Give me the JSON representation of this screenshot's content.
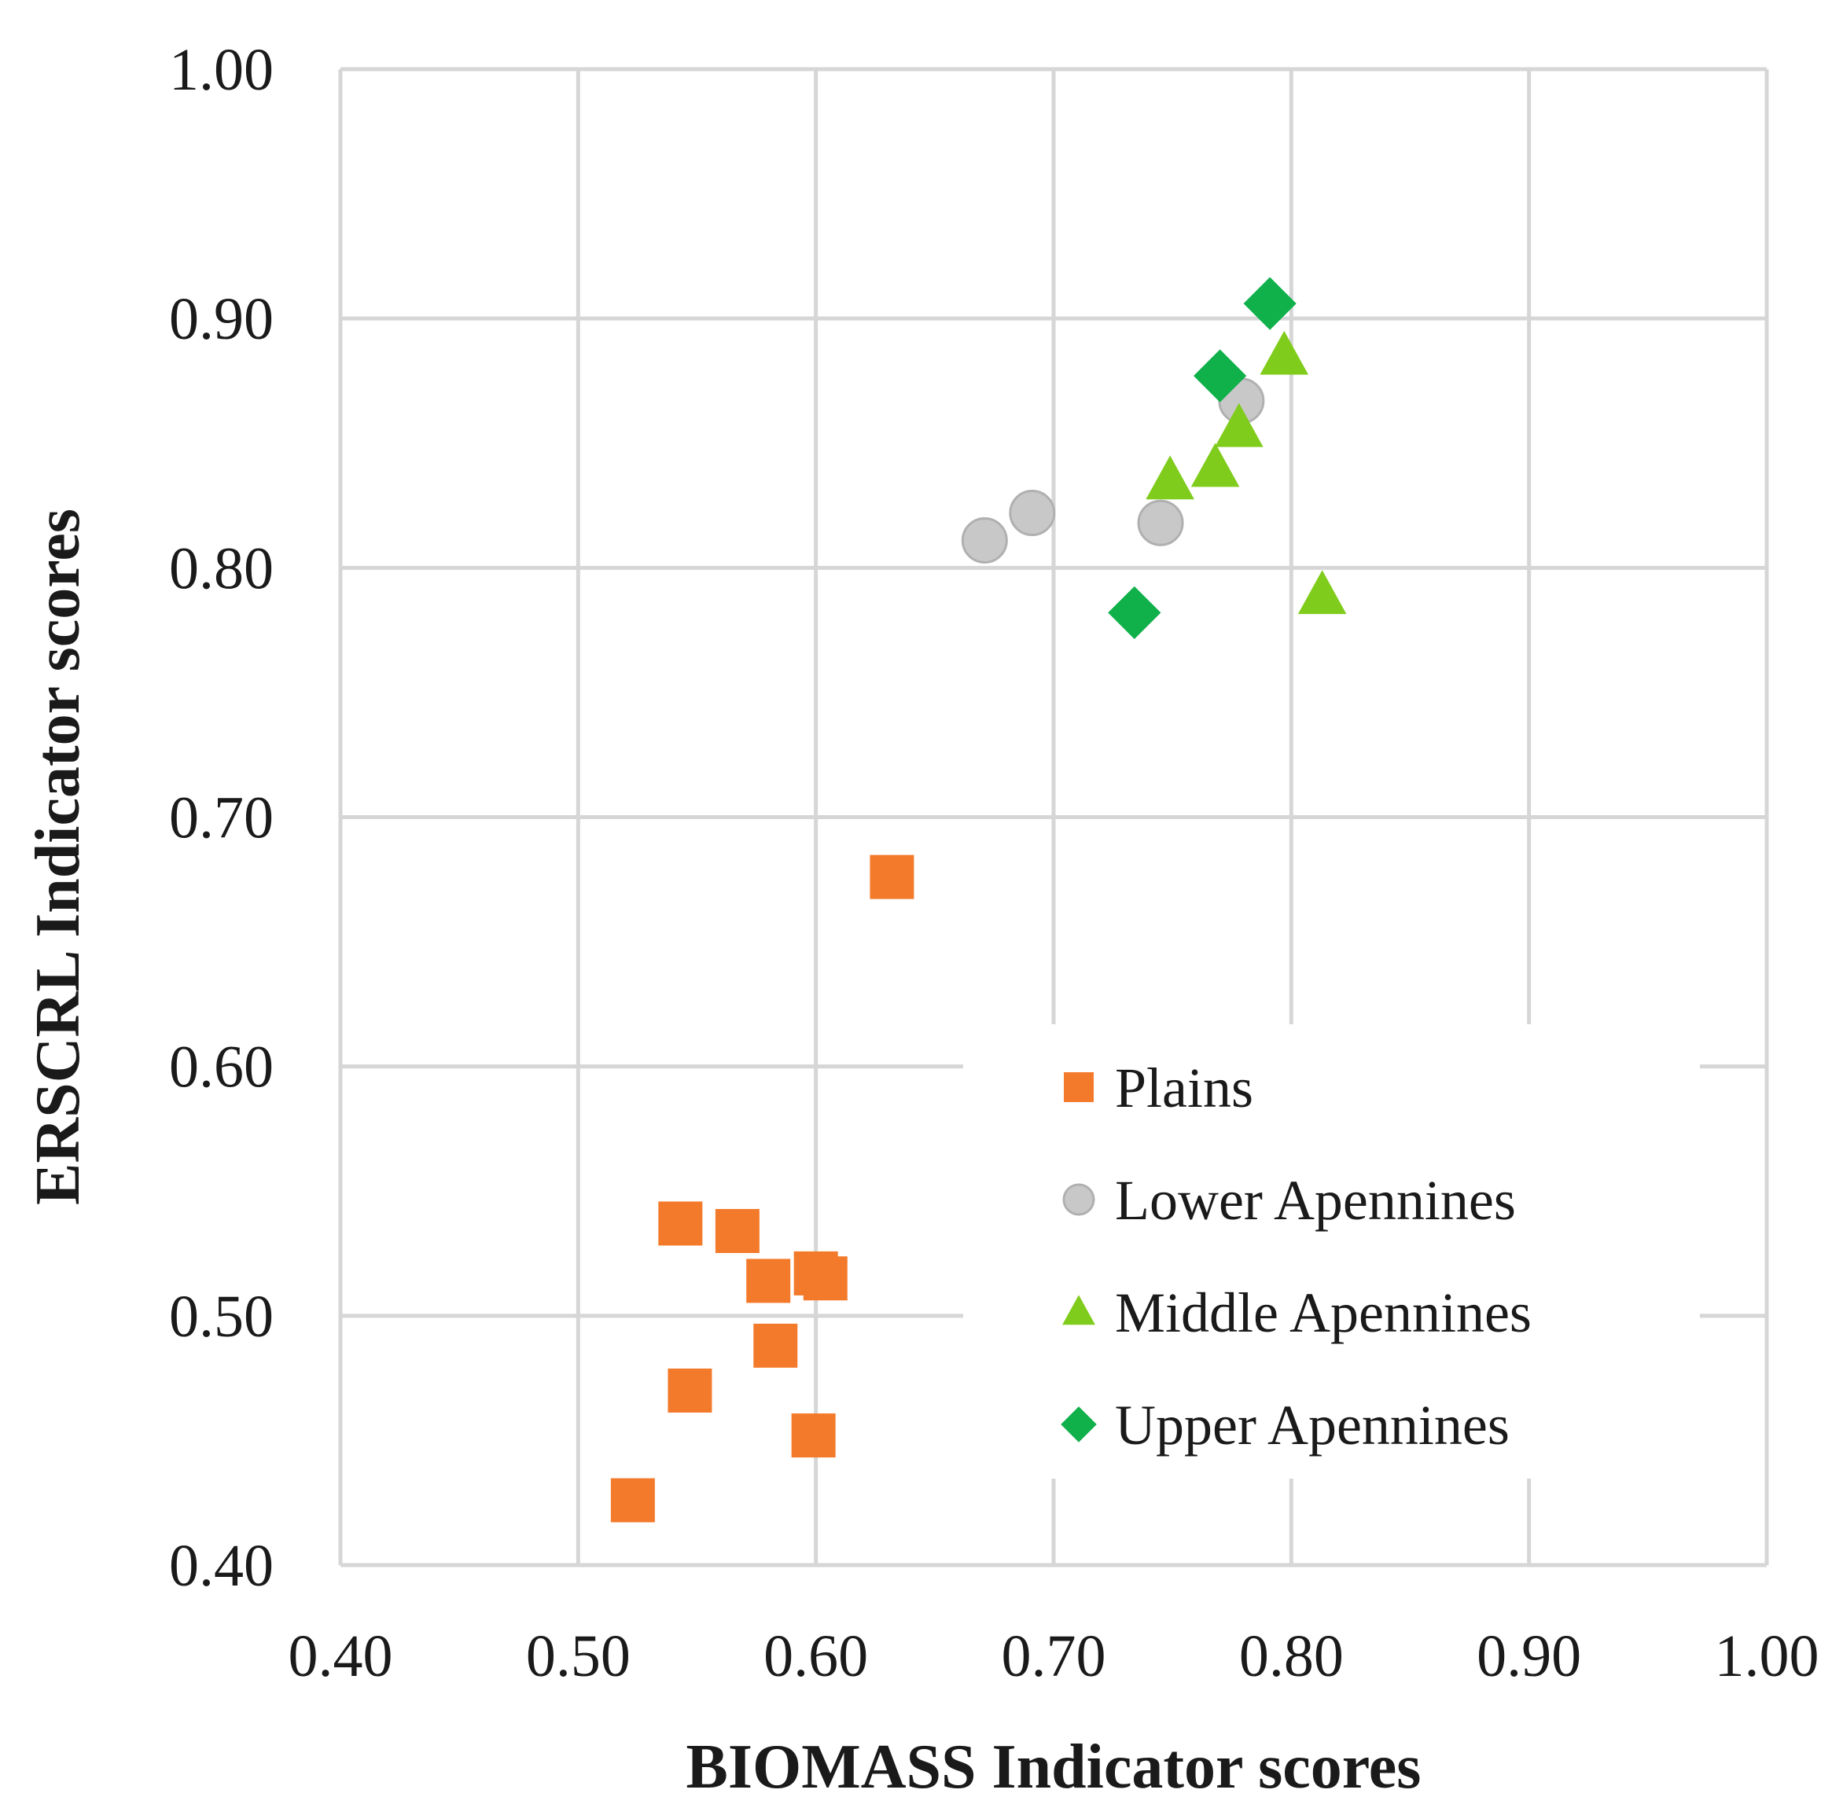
{
  "chart_data": {
    "type": "scatter",
    "title": "",
    "xlabel": "BIOMASS Indicator scores",
    "ylabel": "ERSCRL Indicator scores",
    "xlim": [
      0.4,
      1.0
    ],
    "ylim": [
      0.4,
      1.0
    ],
    "x_ticks": [
      "0.40",
      "0.50",
      "0.60",
      "0.70",
      "0.80",
      "0.90",
      "1.00"
    ],
    "y_ticks": [
      "0.40",
      "0.50",
      "0.60",
      "0.70",
      "0.80",
      "0.90",
      "1.00"
    ],
    "grid": true,
    "legend_position": "lower-right",
    "series": [
      {
        "name": "Plains",
        "marker": "square",
        "color": "#f47a2b",
        "points": [
          {
            "x": 0.632,
            "y": 0.676
          },
          {
            "x": 0.543,
            "y": 0.537
          },
          {
            "x": 0.567,
            "y": 0.534
          },
          {
            "x": 0.58,
            "y": 0.514
          },
          {
            "x": 0.6,
            "y": 0.517
          },
          {
            "x": 0.604,
            "y": 0.515
          },
          {
            "x": 0.583,
            "y": 0.488
          },
          {
            "x": 0.547,
            "y": 0.47
          },
          {
            "x": 0.599,
            "y": 0.452
          },
          {
            "x": 0.523,
            "y": 0.426
          }
        ]
      },
      {
        "name": "Lower Apennines",
        "marker": "circle",
        "color": "#c8c8c8",
        "points": [
          {
            "x": 0.671,
            "y": 0.811
          },
          {
            "x": 0.691,
            "y": 0.822
          },
          {
            "x": 0.745,
            "y": 0.818
          },
          {
            "x": 0.779,
            "y": 0.867
          }
        ]
      },
      {
        "name": "Middle Apennines",
        "marker": "triangle",
        "color": "#80cc1c",
        "points": [
          {
            "x": 0.797,
            "y": 0.885
          },
          {
            "x": 0.778,
            "y": 0.856
          },
          {
            "x": 0.768,
            "y": 0.84
          },
          {
            "x": 0.749,
            "y": 0.835
          },
          {
            "x": 0.813,
            "y": 0.789
          }
        ]
      },
      {
        "name": "Upper Apennines",
        "marker": "diamond",
        "color": "#10b04a",
        "points": [
          {
            "x": 0.791,
            "y": 0.906
          },
          {
            "x": 0.77,
            "y": 0.877
          },
          {
            "x": 0.734,
            "y": 0.782
          }
        ]
      }
    ]
  }
}
